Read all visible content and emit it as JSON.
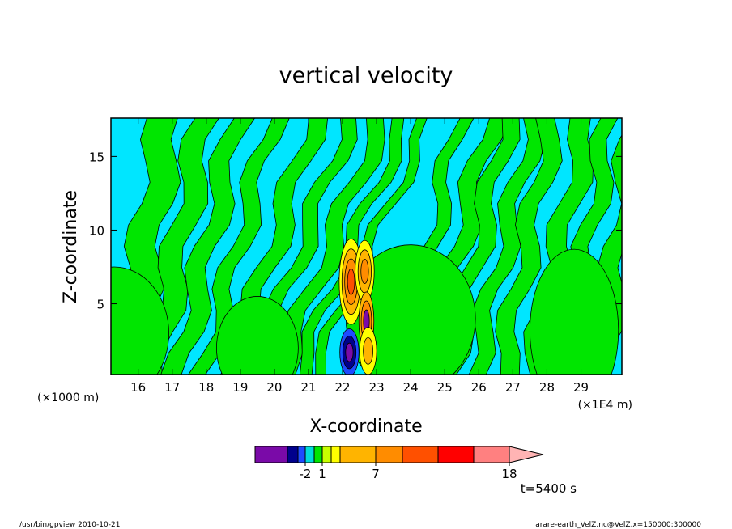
{
  "chart_data": {
    "type": "heatmap",
    "title": "vertical velocity",
    "xlabel": "X-coordinate",
    "ylabel": "Z-coordinate",
    "x_scale_note": "(×1E4 m)",
    "y_scale_note": "(×1000 m)",
    "xlim": [
      15.2,
      30.2
    ],
    "ylim": [
      0.2,
      17.6
    ],
    "x_ticks": [
      "16",
      "17",
      "18",
      "19",
      "20",
      "21",
      "22",
      "23",
      "24",
      "25",
      "26",
      "27",
      "28",
      "29"
    ],
    "y_ticks": [
      "5",
      "10",
      "15"
    ],
    "time_label": "t=5400 s",
    "colorbar": {
      "colors": [
        "#7a0aa8",
        "#00008c",
        "#1e4bff",
        "#00dcdc",
        "#00e600",
        "#c8ff00",
        "#ffff00",
        "#ffb400",
        "#ff8c00",
        "#ff5000",
        "#ff0000",
        "#ff8080",
        "#ffb4b4"
      ],
      "tick_labels": [
        {
          "label": "-2",
          "after_index": 2
        },
        {
          "label": "1",
          "after_index": 4
        },
        {
          "label": "7",
          "after_index": 7
        },
        {
          "label": "18",
          "after_index": 11
        }
      ]
    },
    "background_bands": {
      "note": "alternating green (weak updraft) / cyan (weak downdraft) tilted streaks",
      "green": "#00e600",
      "cyan": "#00e6ff"
    },
    "cells": [
      {
        "x": 22.25,
        "y": 6.5,
        "rx": 0.35,
        "ry": 2.9,
        "levels": [
          "#ffff00",
          "#ffb400",
          "#ff8c00",
          "#ff5000"
        ]
      },
      {
        "x": 22.65,
        "y": 7.2,
        "rx": 0.28,
        "ry": 2.1,
        "levels": [
          "#ffff00",
          "#ffb400",
          "#ff8c00"
        ]
      },
      {
        "x": 22.7,
        "y": 3.8,
        "rx": 0.22,
        "ry": 2.0,
        "levels": [
          "#ffb400",
          "#ff8c00",
          "#7a0aa8"
        ]
      },
      {
        "x": 22.2,
        "y": 1.7,
        "rx": 0.28,
        "ry": 1.6,
        "levels": [
          "#1e4bff",
          "#00008c",
          "#7a0aa8"
        ]
      },
      {
        "x": 22.75,
        "y": 1.8,
        "rx": 0.25,
        "ry": 1.6,
        "levels": [
          "#ffff00",
          "#ffb400"
        ]
      }
    ]
  },
  "footer": {
    "left": "/usr/bin/gpview   2010-10-21",
    "right": "arare-earth_VelZ.nc@VelZ,x=150000:300000"
  }
}
